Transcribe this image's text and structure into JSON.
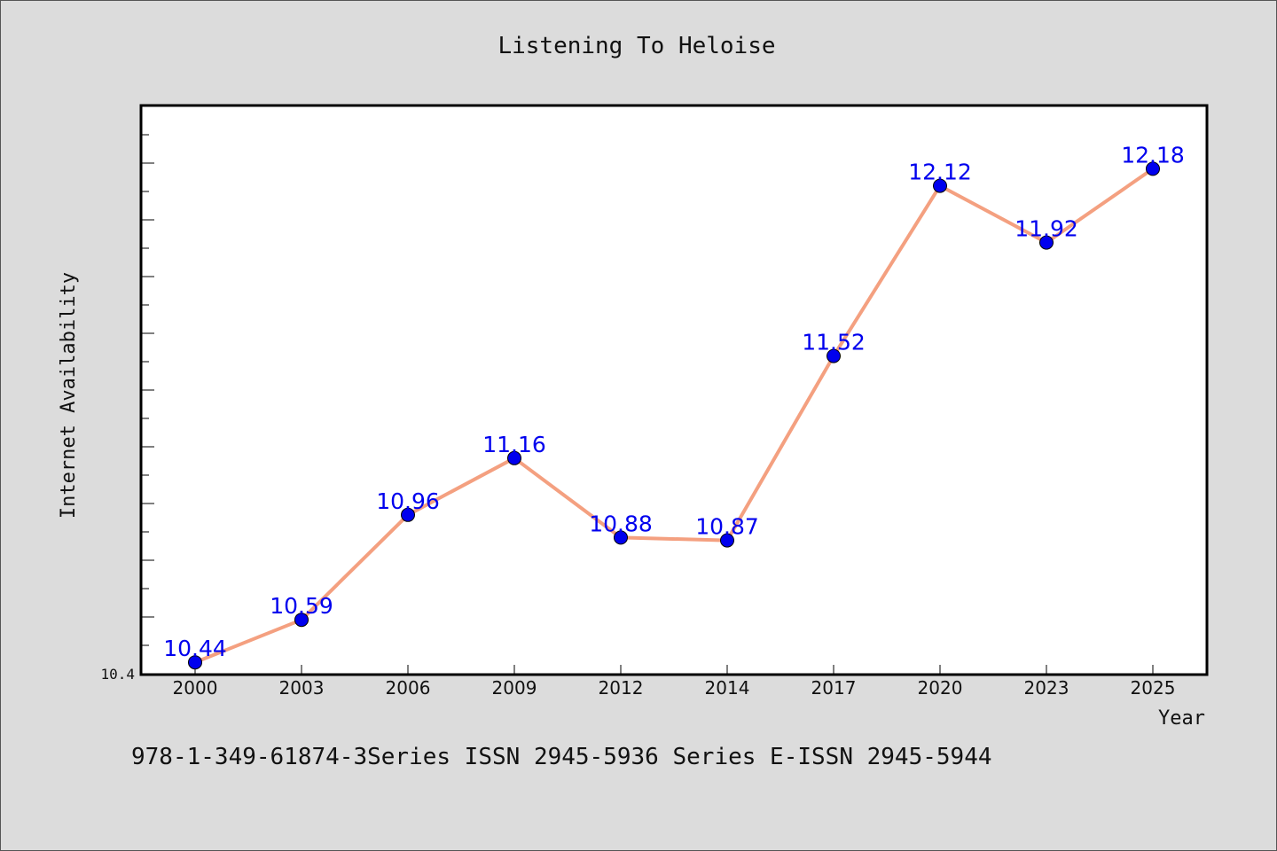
{
  "chart_data": {
    "type": "line",
    "title": "Listening To Heloise",
    "xlabel": "Year",
    "ylabel": "Internet Availability",
    "categories": [
      "2000",
      "2003",
      "2006",
      "2009",
      "2012",
      "2014",
      "2017",
      "2020",
      "2023",
      "2025"
    ],
    "series": [
      {
        "values": [
          10.44,
          10.59,
          10.96,
          11.16,
          10.88,
          10.87,
          11.52,
          12.12,
          11.92,
          12.18
        ],
        "labels": [
          "10.44",
          "10.59",
          "10.96",
          "11.16",
          "10.88",
          "10.87",
          "11.52",
          "12.12",
          "11.92",
          "12.18"
        ]
      }
    ],
    "ylim": [
      10.4,
      12.4
    ],
    "yticks_labeled": [
      "10.4"
    ],
    "grid": false,
    "colors": {
      "line": "#f4a080",
      "marker": "#0000ee",
      "data_label": "#0000ee"
    }
  },
  "footer": {
    "text": "978-1-349-61874-3Series ISSN 2945-5936 Series E-ISSN 2945-5944"
  }
}
